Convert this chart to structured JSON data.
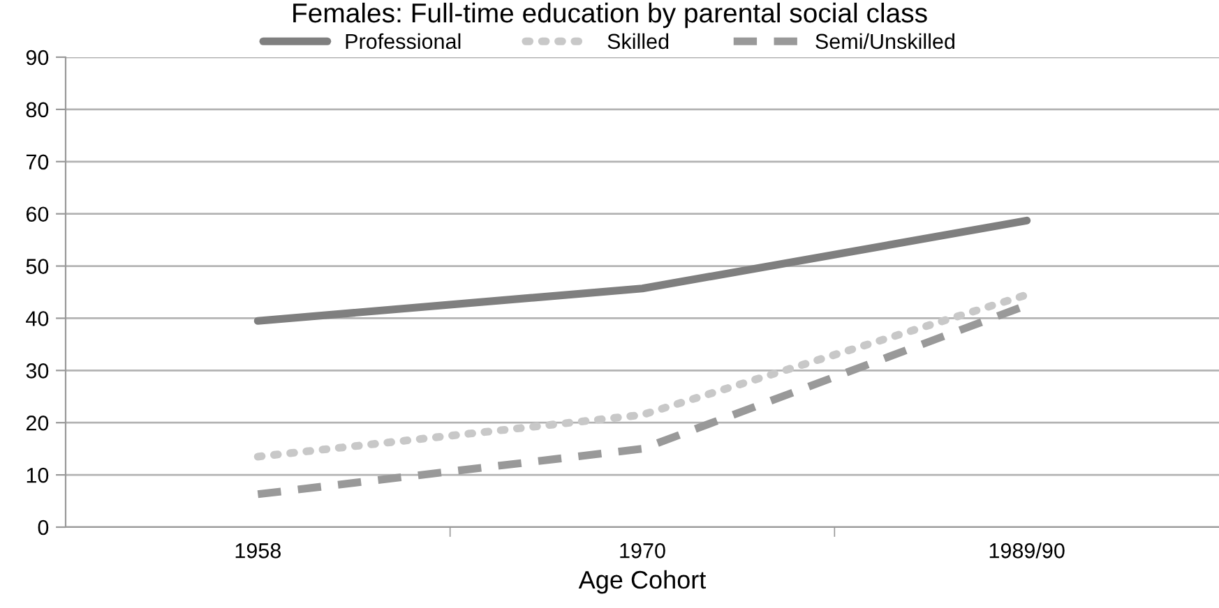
{
  "chart_data": {
    "type": "line",
    "title": "Females: Full-time education by parental social class",
    "xlabel": "Age Cohort",
    "categories": [
      "1958",
      "1970",
      "1989/90"
    ],
    "series": [
      {
        "name": "Professional",
        "color": "#7f7f7f",
        "values": [
          39.5,
          45.7,
          58.7
        ],
        "line_style": "solid"
      },
      {
        "name": "Skilled",
        "color": "#c8c8c8",
        "values": [
          13.5,
          21.5,
          44.5
        ],
        "line_style": "dotted"
      },
      {
        "name": "Semi/Unskilled",
        "color": "#999999",
        "values": [
          6.3,
          15.0,
          42.5
        ],
        "line_style": "dashed"
      }
    ],
    "ylim": [
      0,
      90
    ],
    "yticks": [
      0,
      10,
      20,
      30,
      40,
      50,
      60,
      70,
      80,
      90
    ],
    "grid": "y",
    "legend": "top",
    "marker": "none"
  }
}
